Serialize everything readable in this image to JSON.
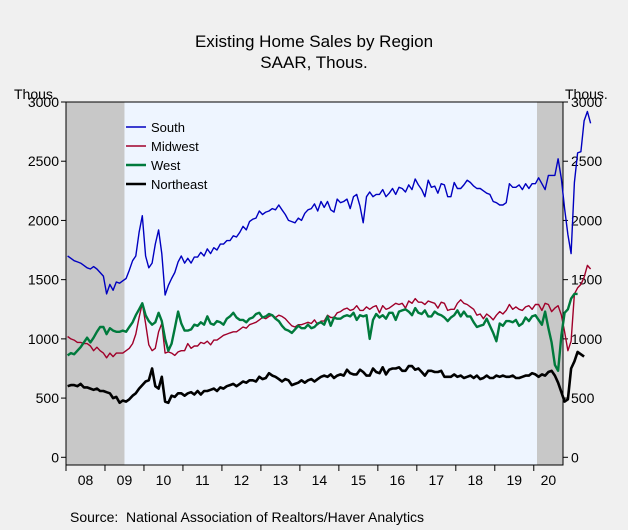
{
  "chart_data": {
    "type": "line",
    "title": "Existing Home Sales by Region",
    "subtitle": "SAAR, Thous.",
    "ylabel_left": "Thous.",
    "ylabel_right": "Thous.",
    "ylim": [
      0,
      3000
    ],
    "yticks": [
      "0",
      "500",
      "1000",
      "1500",
      "2000",
      "2500",
      "3000"
    ],
    "xticks": [
      "08",
      "09",
      "10",
      "11",
      "12",
      "13",
      "14",
      "15",
      "16",
      "17",
      "18",
      "19",
      "20"
    ],
    "x_start": "2008-01",
    "x_end": "2020-09",
    "recessions": [
      [
        "2008-01",
        "2009-06"
      ],
      [
        "2020-02",
        "2020-09"
      ]
    ],
    "legend_position": "top-left",
    "colors": {
      "plot_bg": "#eef5ff",
      "recession": "#c8c8c8",
      "page_bg": "#f0f0f0"
    },
    "series": [
      {
        "name": "South",
        "color": "#0000c0",
        "values": [
          1700,
          1680,
          1660,
          1650,
          1640,
          1620,
          1600,
          1590,
          1610,
          1590,
          1560,
          1530,
          1380,
          1460,
          1410,
          1480,
          1470,
          1490,
          1510,
          1580,
          1660,
          1700,
          1900,
          2040,
          1700,
          1600,
          1640,
          1800,
          1920,
          1720,
          1370,
          1450,
          1510,
          1560,
          1650,
          1700,
          1640,
          1680,
          1640,
          1690,
          1690,
          1730,
          1700,
          1760,
          1720,
          1770,
          1750,
          1800,
          1800,
          1830,
          1830,
          1870,
          1860,
          1900,
          1950,
          1920,
          1990,
          2010,
          2020,
          2080,
          2050,
          2070,
          2080,
          2100,
          2090,
          2130,
          2090,
          2050,
          2000,
          1990,
          1980,
          2020,
          2000,
          2060,
          2090,
          2100,
          2140,
          2080,
          2160,
          2110,
          2160,
          2090,
          2070,
          2180,
          2150,
          2160,
          2180,
          2100,
          2200,
          2220,
          2120,
          1980,
          2200,
          2240,
          2200,
          2220,
          2220,
          2260,
          2200,
          2230,
          2270,
          2220,
          2280,
          2270,
          2240,
          2300,
          2260,
          2350,
          2300,
          2260,
          2200,
          2340,
          2280,
          2290,
          2230,
          2310,
          2300,
          2200,
          2200,
          2320,
          2270,
          2270,
          2300,
          2340,
          2320,
          2290,
          2270,
          2270,
          2250,
          2230,
          2220,
          2160,
          2150,
          2130,
          2130,
          2150,
          2310,
          2280,
          2280,
          2300,
          2260,
          2310,
          2270,
          2310,
          2310,
          2360,
          2310,
          2260,
          2380,
          2380,
          2380,
          2520,
          2350,
          2100,
          1880,
          1720,
          2320,
          2570,
          2580,
          2840,
          2920,
          2820
        ]
      },
      {
        "name": "Midwest",
        "color": "#a0002a",
        "values": [
          1020,
          1000,
          990,
          970,
          970,
          960,
          960,
          940,
          900,
          930,
          900,
          880,
          840,
          880,
          850,
          880,
          880,
          880,
          900,
          920,
          960,
          1040,
          1180,
          1300,
          1130,
          950,
          900,
          920,
          1060,
          1130,
          880,
          890,
          880,
          860,
          890,
          900,
          900,
          960,
          920,
          940,
          940,
          970,
          960,
          980,
          950,
          990,
          990,
          1010,
          1030,
          1040,
          1050,
          1060,
          1060,
          1080,
          1100,
          1090,
          1120,
          1130,
          1140,
          1160,
          1180,
          1170,
          1190,
          1200,
          1180,
          1200,
          1190,
          1170,
          1140,
          1110,
          1100,
          1120,
          1120,
          1130,
          1140,
          1130,
          1160,
          1120,
          1150,
          1150,
          1200,
          1180,
          1180,
          1220,
          1230,
          1250,
          1260,
          1240,
          1250,
          1280,
          1240,
          1240,
          1270,
          1250,
          1270,
          1280,
          1220,
          1280,
          1250,
          1260,
          1280,
          1300,
          1290,
          1300,
          1260,
          1320,
          1300,
          1340,
          1310,
          1310,
          1290,
          1320,
          1310,
          1300,
          1260,
          1310,
          1300,
          1240,
          1250,
          1250,
          1300,
          1330,
          1300,
          1290,
          1270,
          1250,
          1200,
          1210,
          1170,
          1210,
          1190,
          1160,
          1200,
          1230,
          1210,
          1240,
          1290,
          1250,
          1270,
          1250,
          1240,
          1270,
          1280,
          1250,
          1290,
          1290,
          1240,
          1300,
          1290,
          1230,
          1260,
          1280,
          1200,
          1060,
          900,
          980,
          1380,
          1430,
          1460,
          1520,
          1620,
          1590
        ]
      },
      {
        "name": "West",
        "color": "#007a3c",
        "values": [
          860,
          880,
          870,
          900,
          930,
          970,
          1010,
          970,
          1010,
          1060,
          1100,
          1100,
          1040,
          1090,
          1070,
          1060,
          1060,
          1070,
          1060,
          1100,
          1140,
          1200,
          1250,
          1300,
          1200,
          1150,
          1120,
          1140,
          1220,
          1150,
          1000,
          900,
          960,
          1090,
          1230,
          1130,
          1070,
          1070,
          1080,
          1120,
          1110,
          1140,
          1120,
          1190,
          1130,
          1120,
          1150,
          1140,
          1120,
          1170,
          1190,
          1220,
          1180,
          1160,
          1160,
          1140,
          1170,
          1180,
          1210,
          1220,
          1180,
          1190,
          1210,
          1200,
          1170,
          1150,
          1110,
          1080,
          1070,
          1050,
          1080,
          1110,
          1090,
          1090,
          1120,
          1090,
          1100,
          1130,
          1140,
          1120,
          1190,
          1110,
          1180,
          1170,
          1170,
          1190,
          1200,
          1190,
          1220,
          1160,
          1200,
          1190,
          1200,
          1000,
          1160,
          1210,
          1180,
          1200,
          1170,
          1220,
          1220,
          1160,
          1230,
          1240,
          1250,
          1230,
          1200,
          1260,
          1220,
          1210,
          1240,
          1190,
          1190,
          1230,
          1210,
          1200,
          1180,
          1150,
          1180,
          1200,
          1240,
          1190,
          1230,
          1190,
          1190,
          1140,
          1100,
          1110,
          1120,
          1170,
          1110,
          1050,
          980,
          1130,
          1110,
          1150,
          1150,
          1140,
          1160,
          1110,
          1130,
          1180,
          1150,
          1190,
          1200,
          1160,
          1120,
          1230,
          1090,
          970,
          780,
          730,
          1030,
          1220,
          1250,
          1340,
          1380,
          1380
        ]
      },
      {
        "name": "Northeast",
        "color": "#000000",
        "values": [
          600,
          610,
          610,
          600,
          620,
          590,
          590,
          580,
          570,
          580,
          560,
          560,
          550,
          540,
          500,
          510,
          460,
          480,
          470,
          490,
          520,
          540,
          580,
          610,
          640,
          650,
          750,
          600,
          580,
          680,
          470,
          460,
          520,
          510,
          540,
          540,
          520,
          540,
          550,
          530,
          560,
          530,
          560,
          560,
          570,
          580,
          560,
          590,
          580,
          600,
          610,
          620,
          600,
          620,
          640,
          630,
          650,
          650,
          640,
          680,
          660,
          670,
          710,
          690,
          680,
          660,
          640,
          660,
          650,
          610,
          620,
          630,
          650,
          630,
          650,
          660,
          640,
          660,
          680,
          690,
          680,
          700,
          670,
          690,
          700,
          690,
          740,
          710,
          700,
          700,
          740,
          720,
          690,
          690,
          750,
          720,
          710,
          760,
          700,
          740,
          750,
          750,
          760,
          730,
          730,
          770,
          770,
          740,
          750,
          720,
          690,
          730,
          730,
          720,
          720,
          730,
          680,
          680,
          680,
          700,
          680,
          690,
          670,
          680,
          690,
          670,
          690,
          660,
          670,
          690,
          670,
          670,
          690,
          680,
          690,
          680,
          680,
          690,
          670,
          670,
          680,
          690,
          690,
          710,
          700,
          680,
          700,
          690,
          720,
          730,
          690,
          630,
          550,
          470,
          490,
          750,
          810,
          890,
          870,
          850
        ]
      }
    ]
  }
}
